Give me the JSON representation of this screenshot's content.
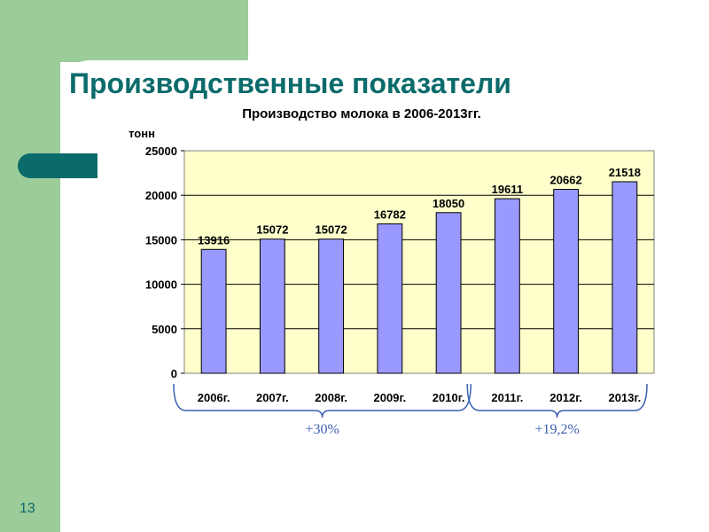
{
  "slide": {
    "title": "Производственные показатели",
    "page_number": "13"
  },
  "chart_data": {
    "type": "bar",
    "title": "Производство молока в 2006-2013гг.",
    "ylabel": "тонн",
    "xlabel": "",
    "ylim": [
      0,
      25000
    ],
    "yticks": [
      0,
      5000,
      10000,
      15000,
      20000,
      25000
    ],
    "categories": [
      "2006г.",
      "2007г.",
      "2008г.",
      "2009г.",
      "2010г.",
      "2011г.",
      "2012г.",
      "2013г."
    ],
    "values": [
      13916,
      15072,
      15072,
      16782,
      18050,
      19611,
      20662,
      21518
    ],
    "grid": true,
    "legend": "none",
    "colors": {
      "bar": "#9999ff",
      "plot_bg": "#ffffcc"
    },
    "annotations": [
      {
        "text": "+30%",
        "span": [
          "2006г.",
          "2010г."
        ]
      },
      {
        "text": "+19,2%",
        "span": [
          "2011г.",
          "2013г."
        ]
      }
    ]
  }
}
